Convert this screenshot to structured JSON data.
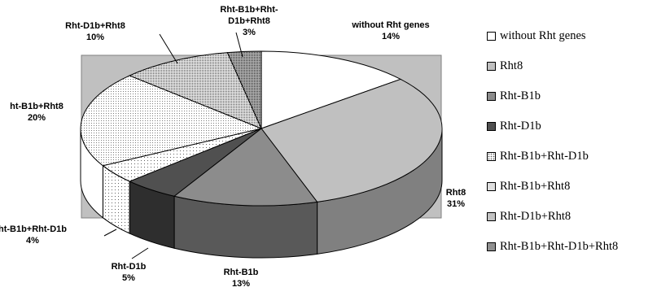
{
  "chart_data": {
    "type": "pie",
    "style": "3d-exploded",
    "title": "",
    "slices": [
      {
        "label": "without Rht genes",
        "value": 14,
        "display": "14%",
        "color": "#ffffff",
        "pattern": "none"
      },
      {
        "label": "Rht8",
        "value": 31,
        "display": "31%",
        "color": "#c0c0c0",
        "pattern": "none"
      },
      {
        "label": "Rht-B1b",
        "value": 13,
        "display": "13%",
        "color": "#8c8c8c",
        "pattern": "none"
      },
      {
        "label": "Rht-D1b",
        "value": 5,
        "display": "5%",
        "color": "#505050",
        "pattern": "none"
      },
      {
        "label": "Rht-B1b+Rht-D1b",
        "value": 4,
        "display": "4%",
        "color": "#ffffff",
        "pattern": "dots-sparse"
      },
      {
        "label": "Rht-B1b+Rht8",
        "value": 20,
        "display": "20%",
        "color": "#ffffff",
        "pattern": "dots-fine"
      },
      {
        "label": "Rht-D1b+Rht8",
        "value": 10,
        "display": "10%",
        "color": "#d8d8d8",
        "pattern": "dots-dense"
      },
      {
        "label": "Rht-B1b+Rht-D1b+Rht8",
        "value": 3,
        "display": "3%",
        "color": "#909090",
        "pattern": "dots-dark"
      }
    ],
    "slice_label_texts": [
      [
        "without Rht genes",
        "14%"
      ],
      [
        "Rht8",
        "31%"
      ],
      [
        "Rht-B1b",
        "13%"
      ],
      [
        "Rht-D1b",
        "5%"
      ],
      [
        "ht-B1b+Rht-D1b",
        "4%"
      ],
      [
        "ht-B1b+Rht8",
        "20%"
      ],
      [
        "Rht-D1b+Rht8",
        "10%"
      ],
      [
        "Rht-B1b+Rht-",
        "D1b+Rht8",
        "3%"
      ]
    ],
    "legend_position": "right",
    "plot_background": "#c0c0c0"
  },
  "legend": {
    "items": [
      "without Rht genes",
      "Rht8",
      "Rht-B1b",
      "Rht-D1b",
      "Rht-B1b+Rht-D1b",
      "Rht-B1b+Rht8",
      "Rht-D1b+Rht8",
      "Rht-B1b+Rht-D1b+Rht8"
    ]
  }
}
